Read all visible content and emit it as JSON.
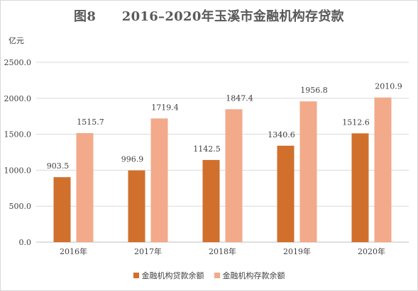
{
  "chart_data": {
    "type": "bar",
    "title": "图8　　2016–2020年玉溪市金融机构存贷款",
    "ylabel": "亿元",
    "xlabel": "",
    "categories": [
      "2016年",
      "2017年",
      "2018年",
      "2019年",
      "2020年"
    ],
    "ylim": [
      0,
      2500
    ],
    "yticks": [
      "0.0",
      "500.0",
      "1000.0",
      "1500.0",
      "2000.0",
      "2500.0"
    ],
    "grid": true,
    "legend_position": "bottom",
    "series": [
      {
        "name": "金融机构贷款余额",
        "color": "#d0702c",
        "values": [
          903.5,
          996.9,
          1142.5,
          1340.6,
          1512.6
        ],
        "labels": [
          "903.5",
          "996.9",
          "1142.5",
          "1340.6",
          "1512.6"
        ]
      },
      {
        "name": "金融机构存款余额",
        "color": "#f2aa8a",
        "values": [
          1515.7,
          1719.4,
          1847.4,
          1956.8,
          2010.9
        ],
        "labels": [
          "1515.7",
          "1719.4",
          "1847.4",
          "1956.8",
          "2010.9"
        ]
      }
    ]
  }
}
